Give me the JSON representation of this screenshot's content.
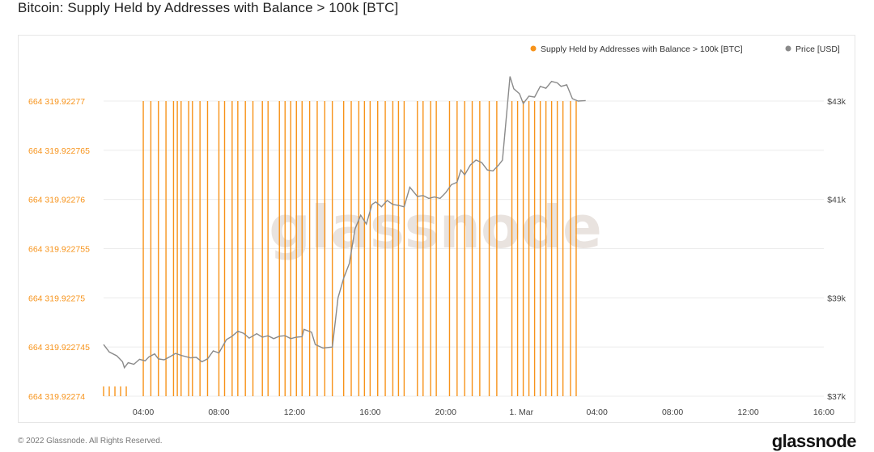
{
  "page": {
    "title": "Bitcoin: Supply Held by Addresses with Balance > 100k [BTC]",
    "copyright": "© 2022 Glassnode. All Rights Reserved.",
    "logo": "glassnode"
  },
  "colors": {
    "supply": "#f7931a",
    "price": "#8a8a8a",
    "grid": "#ececec",
    "watermark": "#e9e3df",
    "axis_text": "#666666"
  },
  "chart_data": {
    "type": "bar",
    "title": "Bitcoin: Supply Held by Addresses with Balance > 100k [BTC]",
    "watermark": "glassnode",
    "grid": true,
    "legend_position": "top-right",
    "legend": [
      {
        "name": "Supply Held by Addresses with Balance > 100k [BTC]",
        "color": "#f7931a",
        "axis": "left"
      },
      {
        "name": "Price [USD]",
        "color": "#8a8a8a",
        "axis": "right"
      }
    ],
    "x_ticks": [
      {
        "t": 4,
        "label": "04:00"
      },
      {
        "t": 8,
        "label": "08:00"
      },
      {
        "t": 12,
        "label": "12:00"
      },
      {
        "t": 16,
        "label": "16:00"
      },
      {
        "t": 20,
        "label": "20:00"
      },
      {
        "t": 24,
        "label": "1. Mar"
      },
      {
        "t": 28,
        "label": "04:00"
      },
      {
        "t": 32,
        "label": "08:00"
      },
      {
        "t": 36,
        "label": "12:00"
      },
      {
        "t": 40,
        "label": "16:00"
      }
    ],
    "xlim": [
      1.9,
      40
    ],
    "left_axis": {
      "ylim": [
        664319.92274,
        664319.92277
      ],
      "ticks": [
        {
          "v": 664319.92274,
          "label": "664 319.92274"
        },
        {
          "v": 664319.922745,
          "label": "664 319.922745"
        },
        {
          "v": 664319.92275,
          "label": "664 319.92275"
        },
        {
          "v": 664319.922755,
          "label": "664 319.922755"
        },
        {
          "v": 664319.92276,
          "label": "664 319.92276"
        },
        {
          "v": 664319.922765,
          "label": "664 319.922765"
        },
        {
          "v": 664319.92277,
          "label": "664 319.92277"
        }
      ]
    },
    "right_axis": {
      "ylim": [
        37000,
        43000
      ],
      "ticks": [
        {
          "v": 37000,
          "label": "$37k"
        },
        {
          "v": 39000,
          "label": "$39k"
        },
        {
          "v": 41000,
          "label": "$41k"
        },
        {
          "v": 43000,
          "label": "$43k"
        }
      ]
    },
    "series": [
      {
        "name": "Supply Held by Addresses with Balance > 100k [BTC]",
        "axis": "left",
        "points": [
          {
            "t": 1.9,
            "value": 664319.922741
          },
          {
            "t": 2.2,
            "value": 664319.922741
          },
          {
            "t": 2.5,
            "value": 664319.922741
          },
          {
            "t": 2.8,
            "value": 664319.922741
          },
          {
            "t": 3.1,
            "value": 664319.922741
          },
          {
            "t": 4.0,
            "value": 664319.92277
          },
          {
            "t": 4.4,
            "value": 664319.92277
          },
          {
            "t": 4.8,
            "value": 664319.92277
          },
          {
            "t": 5.2,
            "value": 664319.92277
          },
          {
            "t": 5.6,
            "value": 664319.92277
          },
          {
            "t": 5.8,
            "value": 664319.92277
          },
          {
            "t": 6.0,
            "value": 664319.92277
          },
          {
            "t": 6.4,
            "value": 664319.92277
          },
          {
            "t": 6.6,
            "value": 664319.92277
          },
          {
            "t": 7.0,
            "value": 664319.92277
          },
          {
            "t": 7.4,
            "value": 664319.92277
          },
          {
            "t": 8.0,
            "value": 664319.92277
          },
          {
            "t": 8.3,
            "value": 664319.92277
          },
          {
            "t": 8.7,
            "value": 664319.92277
          },
          {
            "t": 9.0,
            "value": 664319.92277
          },
          {
            "t": 9.4,
            "value": 664319.92277
          },
          {
            "t": 9.8,
            "value": 664319.92277
          },
          {
            "t": 10.3,
            "value": 664319.92277
          },
          {
            "t": 10.6,
            "value": 664319.92277
          },
          {
            "t": 11.2,
            "value": 664319.92277
          },
          {
            "t": 11.5,
            "value": 664319.92277
          },
          {
            "t": 11.8,
            "value": 664319.92277
          },
          {
            "t": 12.1,
            "value": 664319.92277
          },
          {
            "t": 12.4,
            "value": 664319.92277
          },
          {
            "t": 12.8,
            "value": 664319.92277
          },
          {
            "t": 13.2,
            "value": 664319.92277
          },
          {
            "t": 13.6,
            "value": 664319.92277
          },
          {
            "t": 14.0,
            "value": 664319.92277
          },
          {
            "t": 14.6,
            "value": 664319.92277
          },
          {
            "t": 15.0,
            "value": 664319.92277
          },
          {
            "t": 15.4,
            "value": 664319.92277
          },
          {
            "t": 15.7,
            "value": 664319.92277
          },
          {
            "t": 16.0,
            "value": 664319.92277
          },
          {
            "t": 16.4,
            "value": 664319.92277
          },
          {
            "t": 16.8,
            "value": 664319.92277
          },
          {
            "t": 17.2,
            "value": 664319.92277
          },
          {
            "t": 17.5,
            "value": 664319.92277
          },
          {
            "t": 17.8,
            "value": 664319.92277
          },
          {
            "t": 18.5,
            "value": 664319.92277
          },
          {
            "t": 18.8,
            "value": 664319.92277
          },
          {
            "t": 19.2,
            "value": 664319.92277
          },
          {
            "t": 19.5,
            "value": 664319.92277
          },
          {
            "t": 20.2,
            "value": 664319.92277
          },
          {
            "t": 20.6,
            "value": 664319.92277
          },
          {
            "t": 21.0,
            "value": 664319.92277
          },
          {
            "t": 21.4,
            "value": 664319.92277
          },
          {
            "t": 21.8,
            "value": 664319.92277
          },
          {
            "t": 22.3,
            "value": 664319.92277
          },
          {
            "t": 22.7,
            "value": 664319.92277
          },
          {
            "t": 23.5,
            "value": 664319.92277
          },
          {
            "t": 23.8,
            "value": 664319.92277
          },
          {
            "t": 24.1,
            "value": 664319.92277
          },
          {
            "t": 24.4,
            "value": 664319.92277
          },
          {
            "t": 24.7,
            "value": 664319.92277
          },
          {
            "t": 25.0,
            "value": 664319.92277
          },
          {
            "t": 25.3,
            "value": 664319.92277
          },
          {
            "t": 25.6,
            "value": 664319.92277
          },
          {
            "t": 25.9,
            "value": 664319.92277
          },
          {
            "t": 26.2,
            "value": 664319.92277
          },
          {
            "t": 26.6,
            "value": 664319.92277
          },
          {
            "t": 26.9,
            "value": 664319.92277
          }
        ]
      },
      {
        "name": "Price [USD]",
        "axis": "right",
        "points": [
          {
            "t": 1.9,
            "value": 38050
          },
          {
            "t": 2.2,
            "value": 37900
          },
          {
            "t": 2.6,
            "value": 37820
          },
          {
            "t": 2.9,
            "value": 37700
          },
          {
            "t": 3.0,
            "value": 37580
          },
          {
            "t": 3.2,
            "value": 37680
          },
          {
            "t": 3.5,
            "value": 37650
          },
          {
            "t": 3.8,
            "value": 37750
          },
          {
            "t": 4.1,
            "value": 37720
          },
          {
            "t": 4.3,
            "value": 37800
          },
          {
            "t": 4.6,
            "value": 37860
          },
          {
            "t": 4.8,
            "value": 37760
          },
          {
            "t": 5.1,
            "value": 37740
          },
          {
            "t": 5.4,
            "value": 37800
          },
          {
            "t": 5.7,
            "value": 37870
          },
          {
            "t": 6.0,
            "value": 37830
          },
          {
            "t": 6.5,
            "value": 37780
          },
          {
            "t": 6.8,
            "value": 37790
          },
          {
            "t": 7.1,
            "value": 37700
          },
          {
            "t": 7.4,
            "value": 37760
          },
          {
            "t": 7.7,
            "value": 37920
          },
          {
            "t": 8.0,
            "value": 37880
          },
          {
            "t": 8.4,
            "value": 38150
          },
          {
            "t": 8.7,
            "value": 38220
          },
          {
            "t": 9.0,
            "value": 38320
          },
          {
            "t": 9.3,
            "value": 38280
          },
          {
            "t": 9.6,
            "value": 38180
          },
          {
            "t": 10.0,
            "value": 38270
          },
          {
            "t": 10.3,
            "value": 38200
          },
          {
            "t": 10.6,
            "value": 38230
          },
          {
            "t": 10.9,
            "value": 38170
          },
          {
            "t": 11.2,
            "value": 38220
          },
          {
            "t": 11.5,
            "value": 38230
          },
          {
            "t": 11.8,
            "value": 38170
          },
          {
            "t": 12.1,
            "value": 38200
          },
          {
            "t": 12.4,
            "value": 38210
          },
          {
            "t": 12.5,
            "value": 38360
          },
          {
            "t": 12.9,
            "value": 38300
          },
          {
            "t": 13.1,
            "value": 38050
          },
          {
            "t": 13.5,
            "value": 37980
          },
          {
            "t": 14.0,
            "value": 38000
          },
          {
            "t": 14.3,
            "value": 39000
          },
          {
            "t": 14.6,
            "value": 39400
          },
          {
            "t": 14.9,
            "value": 39700
          },
          {
            "t": 15.2,
            "value": 40400
          },
          {
            "t": 15.5,
            "value": 40680
          },
          {
            "t": 15.8,
            "value": 40500
          },
          {
            "t": 16.1,
            "value": 40900
          },
          {
            "t": 16.3,
            "value": 40950
          },
          {
            "t": 16.6,
            "value": 40850
          },
          {
            "t": 16.9,
            "value": 40980
          },
          {
            "t": 17.2,
            "value": 40900
          },
          {
            "t": 17.5,
            "value": 40880
          },
          {
            "t": 17.8,
            "value": 40850
          },
          {
            "t": 18.1,
            "value": 41250
          },
          {
            "t": 18.5,
            "value": 41060
          },
          {
            "t": 18.8,
            "value": 41080
          },
          {
            "t": 19.1,
            "value": 41020
          },
          {
            "t": 19.4,
            "value": 41050
          },
          {
            "t": 19.7,
            "value": 41020
          },
          {
            "t": 20.0,
            "value": 41140
          },
          {
            "t": 20.3,
            "value": 41300
          },
          {
            "t": 20.6,
            "value": 41350
          },
          {
            "t": 20.8,
            "value": 41600
          },
          {
            "t": 21.0,
            "value": 41500
          },
          {
            "t": 21.3,
            "value": 41700
          },
          {
            "t": 21.6,
            "value": 41800
          },
          {
            "t": 21.9,
            "value": 41750
          },
          {
            "t": 22.2,
            "value": 41600
          },
          {
            "t": 22.5,
            "value": 41580
          },
          {
            "t": 22.8,
            "value": 41700
          },
          {
            "t": 23.0,
            "value": 41800
          },
          {
            "t": 23.4,
            "value": 43500
          },
          {
            "t": 23.6,
            "value": 43250
          },
          {
            "t": 23.9,
            "value": 43150
          },
          {
            "t": 24.1,
            "value": 42950
          },
          {
            "t": 24.4,
            "value": 43100
          },
          {
            "t": 24.7,
            "value": 43080
          },
          {
            "t": 25.0,
            "value": 43300
          },
          {
            "t": 25.3,
            "value": 43260
          },
          {
            "t": 25.6,
            "value": 43400
          },
          {
            "t": 25.9,
            "value": 43370
          },
          {
            "t": 26.1,
            "value": 43300
          },
          {
            "t": 26.4,
            "value": 43330
          },
          {
            "t": 26.7,
            "value": 43050
          },
          {
            "t": 27.0,
            "value": 43000
          },
          {
            "t": 27.4,
            "value": 43010
          }
        ]
      }
    ]
  }
}
